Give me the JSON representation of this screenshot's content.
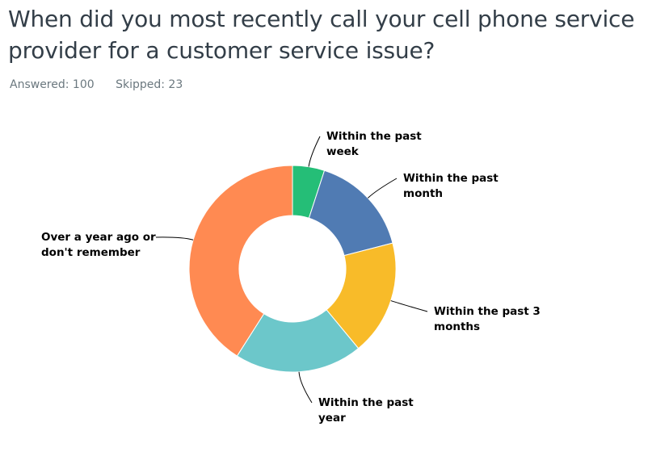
{
  "title": "When did you most recently call your cell phone service provider for a customer service issue?",
  "answered": "Answered: 100",
  "skipped": "Skipped: 23",
  "chart_data": {
    "type": "pie",
    "subtype": "donut",
    "legend": "none",
    "slices": [
      {
        "label": "Within the past week",
        "label_lines": [
          "Within the past",
          "week"
        ],
        "value": 5,
        "color": "#25be77"
      },
      {
        "label": "Within the past month",
        "label_lines": [
          "Within the past",
          "month"
        ],
        "value": 16,
        "color": "#507bb3"
      },
      {
        "label": "Within the past 3 months",
        "label_lines": [
          "Within the past 3",
          "months"
        ],
        "value": 18,
        "color": "#f8bb29"
      },
      {
        "label": "Within the past year",
        "label_lines": [
          "Within the past",
          "year"
        ],
        "value": 20,
        "color": "#6cc7ca"
      },
      {
        "label": "Over a year ago or don't remember",
        "label_lines": [
          "Over a year ago or",
          "don't remember"
        ],
        "value": 41,
        "color": "#ff8a52"
      }
    ]
  }
}
